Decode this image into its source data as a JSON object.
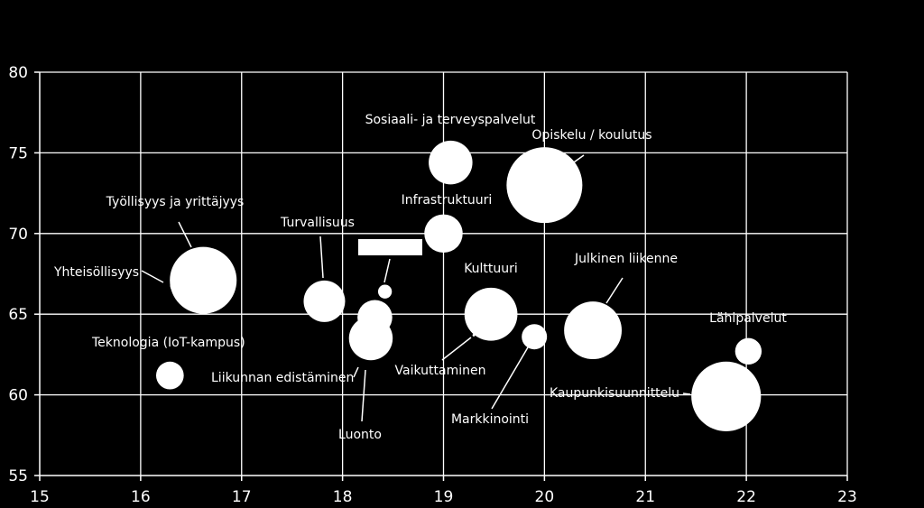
{
  "chart_data": {
    "type": "bubble",
    "title": "",
    "xlabel": "",
    "ylabel": "",
    "xlim": [
      15,
      23
    ],
    "ylim": [
      55,
      80
    ],
    "x_ticks": [
      15,
      16,
      17,
      18,
      19,
      20,
      21,
      22,
      23
    ],
    "y_ticks": [
      55,
      60,
      65,
      70,
      75,
      80
    ],
    "grid": true,
    "colors": {
      "background": "#000000",
      "bubble": "#ffffff",
      "grid": "#ffffff",
      "text": "#ffffff"
    },
    "points": [
      {
        "label": "Sosiaali- ja terveyspalvelut",
        "x": 19.07,
        "y": 74.4,
        "size": 3.0
      },
      {
        "label": "Opiskelu / koulutus",
        "x": 20.0,
        "y": 73.0,
        "size": 9.0
      },
      {
        "label": "Infrastruktuuri",
        "x": 19.0,
        "y": 70.0,
        "size": 2.3
      },
      {
        "label": "Työllisyys ja yrittäjyys",
        "x": 16.62,
        "y": 67.1,
        "size": 7.0
      },
      {
        "label": "Yhteisöllisyys",
        "x": 16.38,
        "y": 66.8,
        "size": 0.5
      },
      {
        "label": "Turvallisuus",
        "x": 17.82,
        "y": 65.8,
        "size": 2.7
      },
      {
        "label": "",
        "x": 18.42,
        "y": 66.4,
        "size": 0.3
      },
      {
        "label": "",
        "x": 18.32,
        "y": 64.8,
        "size": 1.9
      },
      {
        "label": "Liikunnan edistäminen",
        "x": 18.28,
        "y": 63.5,
        "size": 3.0
      },
      {
        "label": "Luonto",
        "x": 18.24,
        "y": 63.4,
        "size": 0.01
      },
      {
        "label": "Kulttuuri",
        "x": 19.47,
        "y": 65.0,
        "size": 4.4
      },
      {
        "label": "Vaikuttaminen",
        "x": 19.3,
        "y": 63.7,
        "size": 0.01
      },
      {
        "label": "Markkinointi",
        "x": 19.9,
        "y": 63.6,
        "size": 1.0
      },
      {
        "label": "Julkinen liikenne",
        "x": 20.48,
        "y": 64.0,
        "size": 5.2
      },
      {
        "label": "Lähipalvelut",
        "x": 22.02,
        "y": 62.7,
        "size": 1.1
      },
      {
        "label": "Kaupunkisuunnittelu",
        "x": 21.8,
        "y": 59.9,
        "size": 7.6
      },
      {
        "label": "Teknologia (IoT-kampus)",
        "x": 16.29,
        "y": 61.2,
        "size": 1.2
      }
    ]
  }
}
